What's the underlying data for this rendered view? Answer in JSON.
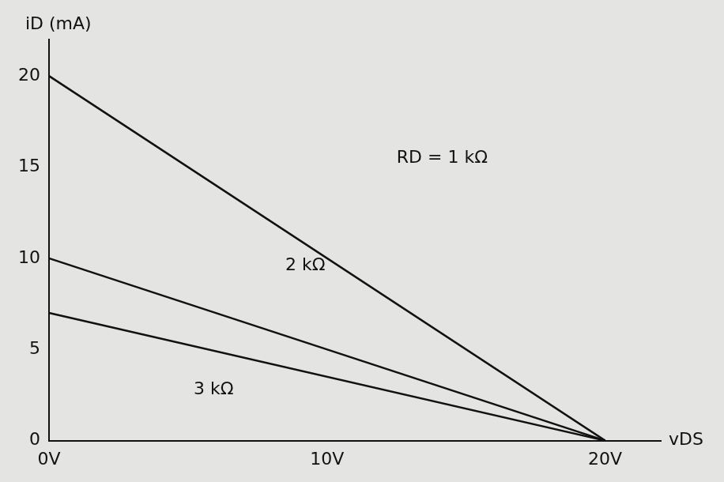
{
  "chart_data": {
    "type": "line",
    "x_label": "vDS",
    "y_label": "iD (mA)",
    "x": [
      0,
      20
    ],
    "series": [
      {
        "name": "RD = 1 kΩ",
        "color": "#111111",
        "values": [
          20,
          0
        ]
      },
      {
        "name": "2 kΩ",
        "color": "#111111",
        "values": [
          10,
          0
        ]
      },
      {
        "name": "3 kΩ",
        "color": "#111111",
        "values": [
          7,
          0
        ]
      }
    ],
    "annotations": [
      {
        "text": "RD = 1 kΩ",
        "x": 12.5,
        "y": 15.5
      },
      {
        "text": "2 kΩ",
        "x": 8.5,
        "y": 9.6
      },
      {
        "text": "3 kΩ",
        "x": 5.2,
        "y": 2.8
      }
    ],
    "xlim": [
      0,
      22
    ],
    "xticks": [
      {
        "value": 0,
        "label": "0V"
      },
      {
        "value": 10,
        "label": "10V"
      },
      {
        "value": 20,
        "label": "20V"
      }
    ],
    "ylim": [
      0,
      22
    ],
    "yticks": [
      0,
      5,
      10,
      15,
      20
    ],
    "grid": false
  }
}
